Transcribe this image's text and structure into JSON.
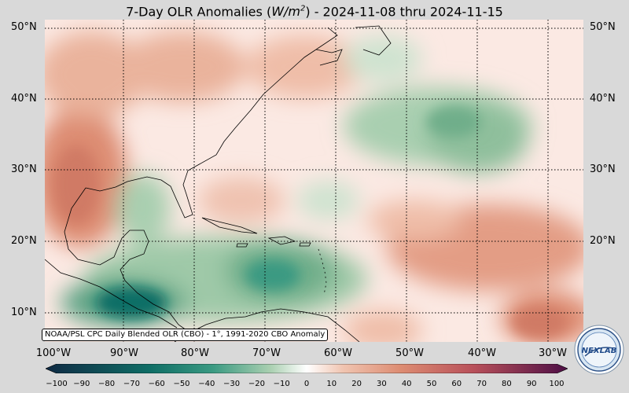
{
  "title": {
    "prefix": "7-Day OLR Anomalies (",
    "unit_base": "W/m",
    "unit_exp": "2",
    "suffix": ") - 2024-11-08 thru 2024-11-15"
  },
  "axes": {
    "lat_labels": [
      {
        "lat": 50,
        "text": "50°N"
      },
      {
        "lat": 40,
        "text": "40°N"
      },
      {
        "lat": 30,
        "text": "30°N"
      },
      {
        "lat": 20,
        "text": "20°N"
      },
      {
        "lat": 10,
        "text": "10°N"
      }
    ],
    "lon_labels": [
      {
        "lon": -100,
        "text": "100°W"
      },
      {
        "lon": -90,
        "text": "90°W"
      },
      {
        "lon": -80,
        "text": "80°W"
      },
      {
        "lon": -70,
        "text": "70°W"
      },
      {
        "lon": -60,
        "text": "60°W"
      },
      {
        "lon": -50,
        "text": "50°W"
      },
      {
        "lon": -40,
        "text": "40°W"
      },
      {
        "lon": -30,
        "text": "30°W"
      }
    ],
    "lon_range": [
      -101.2,
      -25
    ],
    "lat_range": [
      6,
      51.5
    ]
  },
  "source_note": "NOAA/PSL CPC Daily Blended OLR (CBO) - 1°, 1991-2020 CBO Anomaly",
  "colorbar": {
    "ticks": [
      -100,
      -90,
      -80,
      -70,
      -60,
      -50,
      -40,
      -30,
      -20,
      -10,
      0,
      10,
      20,
      30,
      40,
      50,
      60,
      70,
      80,
      90,
      100
    ],
    "colors": {
      "neg_extreme": "#0f2a44",
      "neg_strong": "#0f6e66",
      "neg_mid": "#3a9a82",
      "neg_light": "#a9cfb0",
      "neutral": "#ffffff",
      "pos_light": "#f0c4b0",
      "pos_mid": "#dd8c72",
      "pos_strong": "#b8505a",
      "pos_extreme": "#4d0e45"
    }
  },
  "logo": {
    "text": "NEXLAB"
  }
}
